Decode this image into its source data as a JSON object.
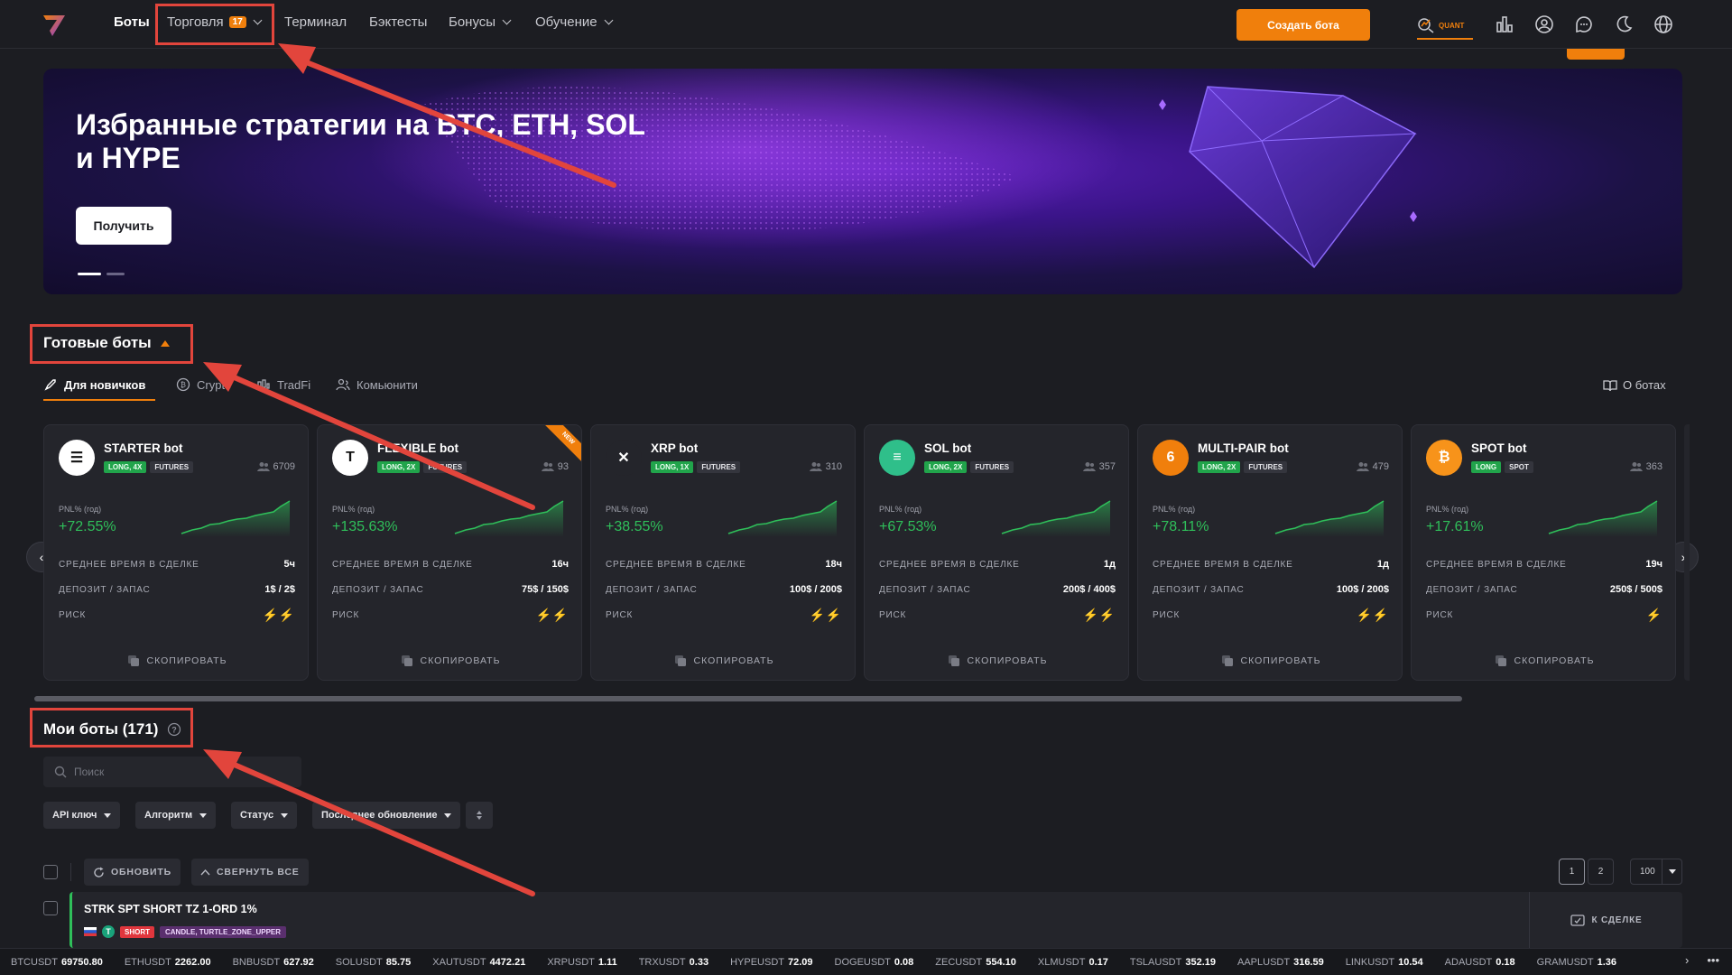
{
  "nav": {
    "items": [
      {
        "label": "Боты"
      },
      {
        "label": "Торговля",
        "badge": "17"
      },
      {
        "label": "Терминал"
      },
      {
        "label": "Бэктесты"
      },
      {
        "label": "Бонусы"
      },
      {
        "label": "Обучение"
      }
    ],
    "create_button": "Создать бота",
    "quant_label": "QUANT"
  },
  "banner": {
    "title": "Избранные стратегии на BTC, ETH, SOL и HYPE",
    "button": "Получить"
  },
  "ready_bots": {
    "title": "Готовые боты",
    "tabs": [
      "Для новичков",
      "Crypto",
      "TradFi",
      "Комьюнити"
    ],
    "about": "О ботах",
    "stat_labels": {
      "avg_time": "СРЕДНЕЕ ВРЕМЯ В СДЕЛКЕ",
      "deposit": "ДЕПОЗИТ / ЗАПАС",
      "risk": "РИСК"
    },
    "pnl_label": "PNL% (год)",
    "copy_label": "СКОПИРОВАТЬ",
    "new_label": "NEW",
    "cards": [
      {
        "name": "STARTER bot",
        "tag1": "LONG, 4X",
        "tag2": "FUTURES",
        "users": "6709",
        "pnl": "+72.55%",
        "avg_time": "5ч",
        "deposit": "1$ / 2$",
        "risk": "⚡⚡",
        "avatar_bg": "#ffffff",
        "avatar_fg": "#111111",
        "avatar_text": "☰"
      },
      {
        "name": "FLEXIBLE bot",
        "tag1": "LONG, 2X",
        "tag2": "FUTURES",
        "users": "93",
        "pnl": "+135.63%",
        "avg_time": "16ч",
        "deposit": "75$ / 150$",
        "risk": "⚡⚡",
        "avatar_bg": "#ffffff",
        "avatar_fg": "#111111",
        "avatar_text": "T"
      },
      {
        "name": "XRP bot",
        "tag1": "LONG, 1X",
        "tag2": "FUTURES",
        "users": "310",
        "pnl": "+38.55%",
        "avg_time": "18ч",
        "deposit": "100$ / 200$",
        "risk": "⚡⚡",
        "avatar_bg": "#24252b",
        "avatar_fg": "#ffffff",
        "avatar_text": "✕"
      },
      {
        "name": "SOL bot",
        "tag1": "LONG, 2X",
        "tag2": "FUTURES",
        "users": "357",
        "pnl": "+67.53%",
        "avg_time": "1д",
        "deposit": "200$ / 400$",
        "risk": "⚡⚡",
        "avatar_bg": "#2fbf8a",
        "avatar_fg": "#ffffff",
        "avatar_text": "≡"
      },
      {
        "name": "MULTI-PAIR bot",
        "tag1": "LONG, 2X",
        "tag2": "FUTURES",
        "users": "479",
        "pnl": "+78.11%",
        "avg_time": "1д",
        "deposit": "100$ / 200$",
        "risk": "⚡⚡",
        "avatar_bg": "#f07f0c",
        "avatar_fg": "#ffffff",
        "avatar_text": "6"
      },
      {
        "name": "SPOT bot",
        "tag1": "LONG",
        "tag2": "SPOT",
        "users": "363",
        "pnl": "+17.61%",
        "avg_time": "19ч",
        "deposit": "250$ / 500$",
        "risk": "⚡",
        "avatar_bg": "#f7931a",
        "avatar_fg": "#ffffff",
        "avatar_text": "₿"
      }
    ]
  },
  "my_bots": {
    "title": "Мои боты (171)",
    "search_placeholder": "Поиск",
    "filters": [
      "API ключ",
      "Алгоритм",
      "Статус",
      "Последнее обновление"
    ],
    "refresh": "ОБНОВИТЬ",
    "collapse": "СВЕРНУТЬ ВСЕ",
    "pages": [
      "1",
      "2"
    ],
    "page_size": "100",
    "row": {
      "name": "STRK SPT SHORT TZ 1-ORD 1%",
      "side": "SHORT",
      "strategy": "CANDLE, TURTLE_ZONE_UPPER",
      "coin_letter": "T",
      "to_deal": "К СДЕЛКЕ"
    }
  },
  "ticker": [
    {
      "sym": "BTCUSDT",
      "price": "69750.80"
    },
    {
      "sym": "ETHUSDT",
      "price": "2262.00"
    },
    {
      "sym": "BNBUSDT",
      "price": "627.92"
    },
    {
      "sym": "SOLUSDT",
      "price": "85.75"
    },
    {
      "sym": "XAUTUSDT",
      "price": "4472.21"
    },
    {
      "sym": "XRPUSDT",
      "price": "1.11"
    },
    {
      "sym": "TRXUSDT",
      "price": "0.33"
    },
    {
      "sym": "HYPEUSDT",
      "price": "72.09"
    },
    {
      "sym": "DOGEUSDT",
      "price": "0.08"
    },
    {
      "sym": "ZECUSDT",
      "price": "554.10"
    },
    {
      "sym": "XLMUSDT",
      "price": "0.17"
    },
    {
      "sym": "TSLAUSDT",
      "price": "352.19"
    },
    {
      "sym": "AAPLUSDT",
      "price": "316.59"
    },
    {
      "sym": "LINKUSDT",
      "price": "10.54"
    },
    {
      "sym": "ADAUSDT",
      "price": "0.18"
    },
    {
      "sym": "GRAMUSDT",
      "price": "1.36"
    }
  ],
  "colors": {
    "accent": "#f07f0c",
    "positive": "#2fbf5a",
    "annotation": "#e2453c"
  }
}
